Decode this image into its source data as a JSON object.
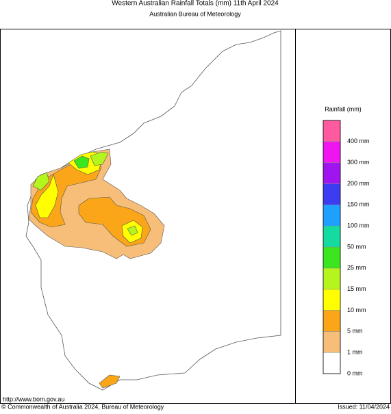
{
  "header": {
    "title": "Western Australian Rainfall Totals (mm) 11th April 2024",
    "subtitle": "Australian Bureau of Meteorology"
  },
  "legend": {
    "title": "Rainfall (mm)",
    "labels": [
      "0 mm",
      "1 mm",
      "5 mm",
      "10 mm",
      "15 mm",
      "25 mm",
      "50 mm",
      "100 mm",
      "150 mm",
      "200 mm",
      "300 mm",
      "400 mm"
    ],
    "colors": [
      "#ffffff",
      "#f6be78",
      "#faa618",
      "#ffff00",
      "#b4f51e",
      "#3ce61e",
      "#14dca0",
      "#1ea0ff",
      "#3c3cf0",
      "#a014f0",
      "#f014f0",
      "#ff5aa0"
    ]
  },
  "footer": {
    "url": "http://www.bom.gov.au",
    "copyright": "© Commonwealth of Australia 2024, Bureau of Meteorology",
    "issued": "Issued: 11/04/2024"
  }
}
